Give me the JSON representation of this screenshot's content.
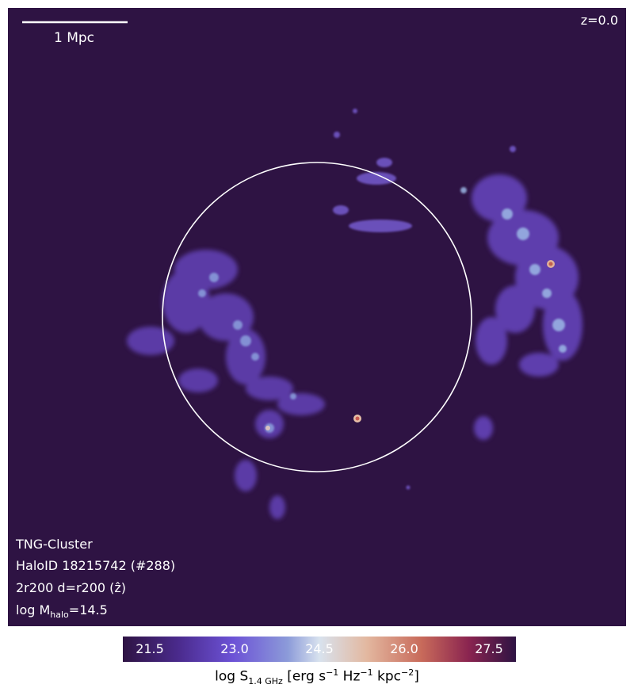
{
  "panel": {
    "scale_bar_label": "1 Mpc",
    "redshift_label": "z=0.0",
    "info": {
      "line1": "TNG-Cluster",
      "line2": "HaloID 18215742 (#288)",
      "line3": "2r200 d=r200 (ẑ)",
      "mass_prefix": "log M",
      "mass_sub": "halo",
      "mass_suffix": "=14.5"
    }
  },
  "colorbar": {
    "ticks": [
      "21.5",
      "23.0",
      "24.5",
      "26.0",
      "27.5"
    ],
    "label_prefix": "log S",
    "label_sub": "1.4 GHz",
    "label_unit_a": " [erg s",
    "sup1": "−1",
    "label_unit_b": " Hz",
    "sup2": "−1",
    "label_unit_c": " kpc",
    "sup3": "−2",
    "label_unit_d": "]",
    "colors": [
      "#2e1343",
      "#6c52d6",
      "#d8e2ee",
      "#c86a5a",
      "#2e1343"
    ]
  },
  "image_background": "#2e1343"
}
